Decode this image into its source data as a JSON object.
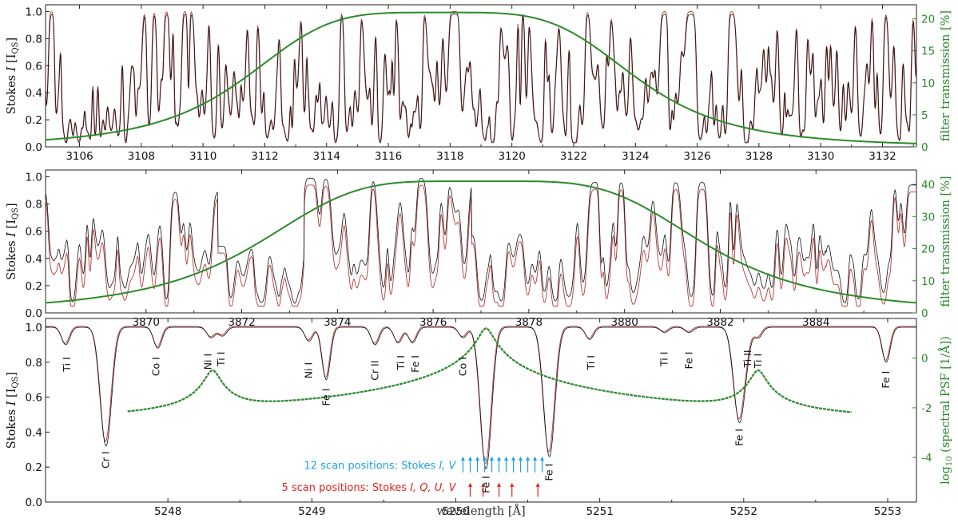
{
  "colors": {
    "obs": "#111111",
    "model": "#b43a3a",
    "filter": "#2b8a2b",
    "scan_blue": "#1ea0e6",
    "scan_red": "#e0241b"
  },
  "chart_data": [
    {
      "type": "line",
      "panel": "top",
      "xlim": [
        3104.9,
        3133.1
      ],
      "ylim": [
        0,
        1.05
      ],
      "ylim_right": [
        0,
        22.2
      ],
      "xticks": [
        "3106",
        "3108",
        "3110",
        "3112",
        "3114",
        "3116",
        "3118",
        "3120",
        "3122",
        "3124",
        "3126",
        "3128",
        "3130",
        "3132"
      ],
      "yticks": [
        "0.0",
        "0.2",
        "0.4",
        "0.6",
        "0.8",
        "1.0"
      ],
      "yticks_right": [
        "0",
        "5",
        "10",
        "15",
        "20"
      ],
      "ylabel": "Stokes I [I",
      "ylabel_sub": "QS",
      "ylabel_tail": "]",
      "ylabel_right": "filter transmission [%]",
      "series": [
        {
          "name": "observed (black)",
          "values": "dense synthetic spectrum, continuum ≈ 0.95–1.0, many absorption lines to ~0.05"
        },
        {
          "name": "model (red)",
          "values": "dense synthetic spectrum following observed"
        },
        {
          "name": "filter transmission",
          "center": 3117.7,
          "peak_percent": 21.0,
          "fwhm_A": 9.0
        }
      ]
    },
    {
      "type": "line",
      "panel": "middle",
      "xlim": [
        3867.9,
        3886.1
      ],
      "ylim": [
        0,
        1.05
      ],
      "ylim_right": [
        0,
        44.5
      ],
      "xticks": [
        "3870",
        "3872",
        "3874",
        "3876",
        "3878",
        "3880",
        "3882",
        "3884"
      ],
      "yticks": [
        "0.0",
        "0.2",
        "0.4",
        "0.6",
        "0.8",
        "1.0"
      ],
      "yticks_right": [
        "0",
        "10",
        "20",
        "30",
        "40"
      ],
      "ylabel": "Stokes I [I",
      "ylabel_sub": "QS",
      "ylabel_tail": "]",
      "ylabel_right": "filter transmission [%]",
      "series": [
        {
          "name": "observed (black)",
          "values": "dense synthetic spectrum"
        },
        {
          "name": "model (red)",
          "values": "dense synthetic spectrum"
        },
        {
          "name": "filter transmission",
          "plateau": [
            3876.5,
            3877.5
          ],
          "peak_percent": 41.0
        }
      ]
    },
    {
      "type": "line",
      "panel": "bottom",
      "xlim": [
        5247.15,
        5253.2
      ],
      "ylim": [
        0,
        1.05
      ],
      "ylim_right": [
        -5.8,
        1.6
      ],
      "xticks": [
        "5248",
        "5249",
        "5250",
        "5251",
        "5252",
        "5253"
      ],
      "yticks": [
        "0.0",
        "0.2",
        "0.4",
        "0.6",
        "0.8",
        "1.0"
      ],
      "yticks_right": [
        "-4",
        "-2",
        "0"
      ],
      "xlabel": "wavelength [Å]",
      "ylabel": "Stokes I [I",
      "ylabel_sub": "QS",
      "ylabel_tail": "]",
      "ylabel_right_pre": "log",
      "ylabel_right_sub": "10",
      "ylabel_right_post": " (spectral PSF [1/Å])",
      "lines": [
        {
          "label": "Ti I",
          "x": 5247.29,
          "depth": 0.9
        },
        {
          "label": "Cr I",
          "x": 5247.57,
          "depth": 0.32
        },
        {
          "label": "Co I",
          "x": 5247.93,
          "depth": 0.88
        },
        {
          "label": "Ni I",
          "x": 5248.3,
          "depth": 0.94
        },
        {
          "label": "Ti I",
          "x": 5248.38,
          "depth": 0.95
        },
        {
          "label": "Ni I",
          "x": 5248.98,
          "depth": 0.92
        },
        {
          "label": "Fe I",
          "x": 5249.1,
          "depth": 0.7
        },
        {
          "label": "Cr II",
          "x": 5249.44,
          "depth": 0.9
        },
        {
          "label": "Ti I",
          "x": 5249.6,
          "depth": 0.91
        },
        {
          "label": "Fe I",
          "x": 5249.7,
          "depth": 0.91
        },
        {
          "label": "Co I",
          "x": 5250.05,
          "depth": 0.94
        },
        {
          "label": "Fe I",
          "x": 5250.21,
          "depth": 0.19
        },
        {
          "label": "Fe I",
          "x": 5250.65,
          "depth": 0.26
        },
        {
          "label": "Ti I",
          "x": 5250.93,
          "depth": 0.93
        },
        {
          "label": "Ti I",
          "x": 5251.45,
          "depth": 0.97
        },
        {
          "label": "Fe I",
          "x": 5251.62,
          "depth": 0.97
        },
        {
          "label": "Fe I",
          "x": 5251.97,
          "depth": 0.46
        },
        {
          "label": "Ti II",
          "x": 5252.02,
          "depth": 0.94
        },
        {
          "label": "Ti I",
          "x": 5252.1,
          "depth": 0.94
        },
        {
          "label": "Fe I",
          "x": 5252.99,
          "depth": 0.8
        }
      ],
      "psf_peaks": [
        5248.31,
        5250.21,
        5252.1
      ],
      "psf_peak_log": [
        -0.5,
        1.2,
        -0.5
      ],
      "scan_blue_label": "12 scan positions: Stokes ",
      "scan_blue_italic": "I, V",
      "scan_red_label": "5 scan positions: Stokes ",
      "scan_red_italic": "I, Q, U, V",
      "scan_blue_x": [
        5250.05,
        5250.1,
        5250.15,
        5250.2,
        5250.25,
        5250.3,
        5250.35,
        5250.4,
        5250.45,
        5250.5,
        5250.55,
        5250.6
      ],
      "scan_red_x": [
        5250.1,
        5250.19,
        5250.3,
        5250.39,
        5250.57
      ]
    }
  ]
}
